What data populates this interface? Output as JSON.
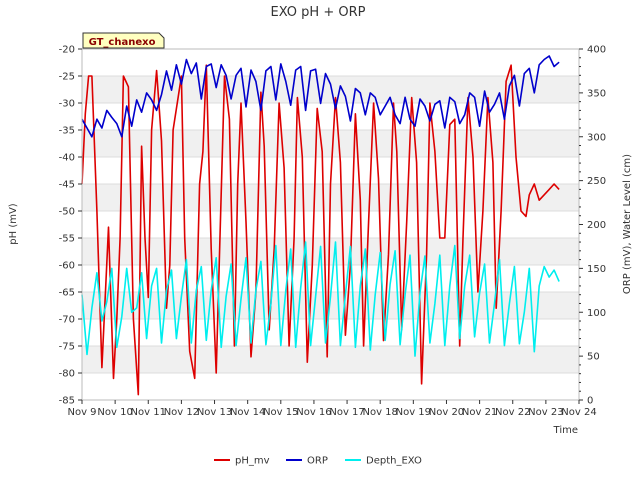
{
  "chart_data": {
    "type": "line",
    "title": "EXO pH + ORP",
    "badge": "GT_chanexo",
    "xlabel": "Time",
    "ylabel_left": "pH (mV)",
    "ylabel_right": "ORP (mV), Water Level (cm)",
    "x_ticks": [
      "Nov 9",
      "Nov 10",
      "Nov 11",
      "Nov 12",
      "Nov 13",
      "Nov 14",
      "Nov 15",
      "Nov 16",
      "Nov 17",
      "Nov 18",
      "Nov 19",
      "Nov 20",
      "Nov 21",
      "Nov 22",
      "Nov 23",
      "Nov 24"
    ],
    "y_left_ticks": [
      -20,
      -25,
      -30,
      -35,
      -40,
      -45,
      -50,
      -55,
      -60,
      -65,
      -70,
      -75,
      -80,
      -85
    ],
    "y_right_ticks": [
      0,
      50,
      100,
      150,
      200,
      250,
      300,
      350,
      400
    ],
    "xlim": [
      0,
      15
    ],
    "ylim_left": [
      -85,
      -20
    ],
    "ylim_right": [
      0,
      400
    ],
    "grid": true,
    "legend_position": "bottom-center",
    "series": [
      {
        "name": "pH_mv",
        "axis": "left",
        "color": "#dd0000",
        "x": [
          0.0,
          0.1,
          0.2,
          0.3,
          0.45,
          0.6,
          0.8,
          0.95,
          1.05,
          1.15,
          1.25,
          1.4,
          1.55,
          1.7,
          1.8,
          1.9,
          2.0,
          2.1,
          2.25,
          2.4,
          2.55,
          2.65,
          2.75,
          2.9,
          3.0,
          3.1,
          3.25,
          3.4,
          3.55,
          3.65,
          3.75,
          3.9,
          4.05,
          4.15,
          4.3,
          4.45,
          4.6,
          4.7,
          4.8,
          4.95,
          5.1,
          5.25,
          5.4,
          5.5,
          5.65,
          5.8,
          5.95,
          6.1,
          6.25,
          6.4,
          6.5,
          6.65,
          6.8,
          6.95,
          7.1,
          7.25,
          7.4,
          7.5,
          7.65,
          7.8,
          7.95,
          8.1,
          8.25,
          8.4,
          8.5,
          8.65,
          8.8,
          8.95,
          9.1,
          9.25,
          9.4,
          9.5,
          9.65,
          9.8,
          9.95,
          10.1,
          10.25,
          10.4,
          10.5,
          10.65,
          10.8,
          10.95,
          11.1,
          11.25,
          11.4,
          11.5,
          11.65,
          11.8,
          11.95,
          12.1,
          12.25,
          12.4,
          12.5,
          12.65,
          12.8,
          12.95,
          13.1,
          13.25,
          13.4,
          13.5,
          13.65,
          13.8,
          13.95,
          14.1,
          14.25,
          14.4
        ],
        "values": [
          -45,
          -32,
          -25,
          -25,
          -50,
          -79,
          -53,
          -81,
          -70,
          -55,
          -25,
          -27,
          -70,
          -84,
          -38,
          -55,
          -66,
          -35,
          -24,
          -37,
          -68,
          -60,
          -35,
          -29,
          -25,
          -55,
          -76,
          -81,
          -45,
          -39,
          -23,
          -57,
          -80,
          -58,
          -25,
          -33,
          -75,
          -45,
          -30,
          -52,
          -77,
          -65,
          -28,
          -38,
          -72,
          -57,
          -30,
          -42,
          -75,
          -55,
          -29,
          -40,
          -78,
          -60,
          -31,
          -39,
          -77,
          -45,
          -29,
          -41,
          -73,
          -60,
          -32,
          -48,
          -75,
          -52,
          -30,
          -44,
          -74,
          -58,
          -30,
          -39,
          -72,
          -52,
          -29,
          -41,
          -82,
          -58,
          -30,
          -39,
          -55,
          -55,
          -34,
          -33,
          -75,
          -55,
          -29,
          -40,
          -65,
          -50,
          -29,
          -41,
          -68,
          -50,
          -26,
          -23,
          -40,
          -50,
          -51,
          -47,
          -45,
          -48,
          -47,
          -46,
          -45,
          -46
        ]
      },
      {
        "name": "ORP",
        "axis": "right",
        "color": "#0000cc",
        "x": [
          0.0,
          0.15,
          0.3,
          0.45,
          0.6,
          0.75,
          0.9,
          1.05,
          1.2,
          1.35,
          1.5,
          1.65,
          1.8,
          1.95,
          2.1,
          2.25,
          2.4,
          2.55,
          2.7,
          2.85,
          3.0,
          3.15,
          3.3,
          3.45,
          3.6,
          3.75,
          3.9,
          4.05,
          4.2,
          4.35,
          4.5,
          4.65,
          4.8,
          4.95,
          5.1,
          5.25,
          5.4,
          5.55,
          5.7,
          5.85,
          6.0,
          6.15,
          6.3,
          6.45,
          6.6,
          6.75,
          6.9,
          7.05,
          7.2,
          7.35,
          7.5,
          7.65,
          7.8,
          7.95,
          8.1,
          8.25,
          8.4,
          8.55,
          8.7,
          8.85,
          9.0,
          9.15,
          9.3,
          9.45,
          9.6,
          9.75,
          9.9,
          10.05,
          10.2,
          10.35,
          10.5,
          10.65,
          10.8,
          10.95,
          11.1,
          11.25,
          11.4,
          11.55,
          11.7,
          11.85,
          12.0,
          12.15,
          12.3,
          12.45,
          12.6,
          12.75,
          12.9,
          13.05,
          13.2,
          13.35,
          13.5,
          13.65,
          13.8,
          13.95,
          14.1,
          14.25,
          14.4
        ],
        "values": [
          320,
          310,
          300,
          320,
          310,
          330,
          322,
          315,
          300,
          335,
          312,
          342,
          328,
          350,
          342,
          330,
          348,
          375,
          353,
          382,
          360,
          388,
          372,
          384,
          343,
          380,
          383,
          356,
          382,
          370,
          343,
          370,
          378,
          334,
          376,
          363,
          330,
          375,
          380,
          342,
          383,
          363,
          336,
          376,
          380,
          330,
          375,
          377,
          338,
          372,
          360,
          332,
          358,
          346,
          318,
          355,
          350,
          325,
          350,
          345,
          325,
          335,
          345,
          325,
          315,
          345,
          320,
          312,
          343,
          335,
          318,
          337,
          341,
          310,
          345,
          340,
          315,
          325,
          350,
          345,
          312,
          352,
          328,
          337,
          350,
          320,
          358,
          370,
          335,
          372,
          378,
          350,
          382,
          388,
          392,
          380,
          385
        ]
      },
      {
        "name": "Depth_EXO",
        "axis": "right",
        "color": "#00eeee",
        "x": [
          0.0,
          0.15,
          0.3,
          0.45,
          0.6,
          0.75,
          0.9,
          1.05,
          1.2,
          1.35,
          1.5,
          1.65,
          1.8,
          1.95,
          2.1,
          2.25,
          2.4,
          2.55,
          2.7,
          2.85,
          3.0,
          3.15,
          3.3,
          3.45,
          3.6,
          3.75,
          3.9,
          4.05,
          4.2,
          4.35,
          4.5,
          4.65,
          4.8,
          4.95,
          5.1,
          5.25,
          5.4,
          5.55,
          5.7,
          5.85,
          6.0,
          6.15,
          6.3,
          6.45,
          6.6,
          6.75,
          6.9,
          7.05,
          7.2,
          7.35,
          7.5,
          7.65,
          7.8,
          7.95,
          8.1,
          8.25,
          8.4,
          8.55,
          8.7,
          8.85,
          9.0,
          9.15,
          9.3,
          9.45,
          9.6,
          9.75,
          9.9,
          10.05,
          10.2,
          10.35,
          10.5,
          10.65,
          10.8,
          10.95,
          11.1,
          11.25,
          11.4,
          11.55,
          11.7,
          11.85,
          12.0,
          12.15,
          12.3,
          12.45,
          12.6,
          12.75,
          12.9,
          13.05,
          13.2,
          13.35,
          13.5,
          13.65,
          13.8,
          13.95,
          14.1,
          14.25,
          14.4
        ],
        "values": [
          120,
          52,
          105,
          145,
          90,
          112,
          150,
          60,
          95,
          150,
          100,
          105,
          145,
          70,
          130,
          150,
          65,
          125,
          148,
          70,
          118,
          160,
          65,
          125,
          152,
          68,
          125,
          162,
          60,
          118,
          155,
          62,
          115,
          162,
          65,
          125,
          158,
          63,
          110,
          176,
          62,
          125,
          172,
          60,
          128,
          180,
          62,
          118,
          175,
          65,
          118,
          180,
          62,
          120,
          175,
          60,
          130,
          172,
          57,
          120,
          168,
          68,
          132,
          170,
          63,
          120,
          165,
          50,
          122,
          164,
          65,
          110,
          165,
          62,
          130,
          176,
          70,
          130,
          165,
          72,
          122,
          155,
          65,
          110,
          160,
          62,
          110,
          152,
          64,
          100,
          150,
          55,
          130,
          152,
          140,
          148,
          135
        ]
      }
    ]
  }
}
